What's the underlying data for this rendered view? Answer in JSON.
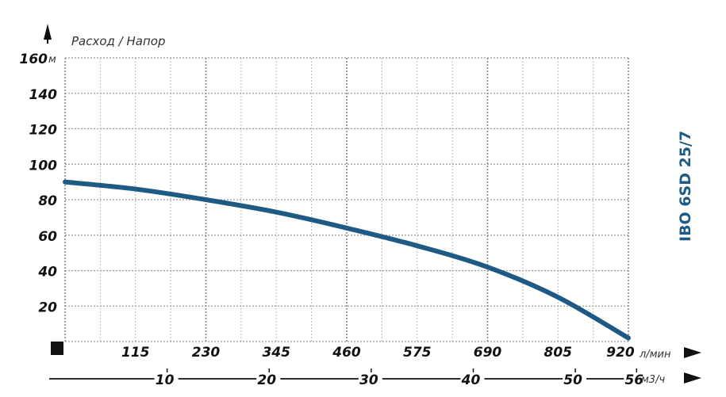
{
  "chart_data": {
    "type": "line",
    "title": "IBO 6SD 25/7",
    "ylabel": "Расход / Напор",
    "y_unit": "м",
    "x_unit": "л/мин",
    "x2_unit": "м3/ч",
    "ylim": [
      0,
      160
    ],
    "xlim": [
      0,
      920
    ],
    "y_ticks": [
      20,
      40,
      60,
      80,
      100,
      120,
      140,
      160
    ],
    "y_tick_labels": [
      "20",
      "40",
      "60",
      "80",
      "100",
      "120",
      "140",
      "160"
    ],
    "x_ticks": [
      115,
      230,
      345,
      460,
      575,
      690,
      805,
      920
    ],
    "x_tick_labels": [
      "115",
      "230",
      "345",
      "460",
      "575",
      "690",
      "805",
      "920"
    ],
    "x2_ticks": [
      10,
      20,
      30,
      40,
      50,
      56
    ],
    "x2_tick_labels": [
      "10",
      "20",
      "30",
      "40",
      "50",
      "56"
    ],
    "grid": true,
    "series": [
      {
        "x": [
          0,
          115,
          230,
          345,
          460,
          575,
          690,
          805,
          920
        ],
        "y": [
          90,
          86,
          80,
          73,
          64,
          54,
          42,
          25,
          2
        ]
      }
    ],
    "colors": {
      "curve": "#1f5a85",
      "title": "#1f5a85",
      "axis": "#111111",
      "grid": "#999999"
    }
  }
}
